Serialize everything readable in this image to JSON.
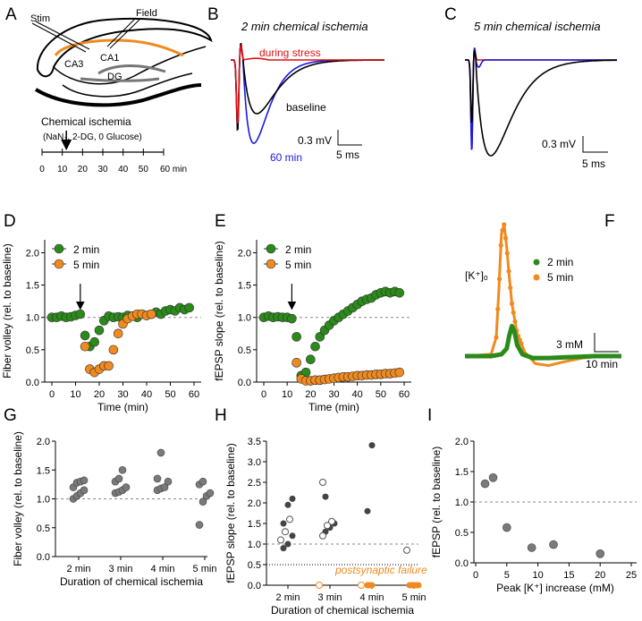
{
  "panel_letters": {
    "A": "A",
    "B": "B",
    "C": "C",
    "D": "D",
    "E": "E",
    "F": "F",
    "G": "G",
    "H": "H",
    "I": "I"
  },
  "schematic": {
    "stim_label": "Stim",
    "field_label": "Field",
    "regions": [
      "CA3",
      "CA1",
      "DG"
    ],
    "protocol_title": "Chemical ischemia",
    "protocol_detail": "(NaN₃, 2-DG, 0 Glucose)",
    "timeline_ticks": [
      "0",
      "10",
      "20",
      "30",
      "40",
      "50",
      "60 min"
    ],
    "arrow_time_min": 12
  },
  "traces": {
    "B_title": "2 min chemical ischemia",
    "C_title": "5 min chemical ischemia",
    "label_stress": "during stress",
    "label_baseline": "baseline",
    "label_60": "60 min",
    "scale_mv": "0.3 mV",
    "scale_ms": "5 ms",
    "colors": {
      "baseline": "#000000",
      "stress": "#e01010",
      "late": "#1a1ae0"
    }
  },
  "colors": {
    "green": "#2a8a1a",
    "orange": "#f08a1e",
    "grey": "#6e6e6e",
    "dark": "#444444"
  },
  "chart_data": [
    {
      "id": "D",
      "type": "scatter",
      "ylabel": "Fiber volley (rel. to baseline)",
      "xlabel": "Time (min)",
      "xlim": [
        0,
        60
      ],
      "ylim": [
        0,
        2.2
      ],
      "xticks": [
        "0",
        "10",
        "20",
        "30",
        "40",
        "50",
        "60"
      ],
      "yticks": [
        "0.0",
        "0.5",
        "1.0",
        "1.5",
        "2.0"
      ],
      "reference_line": 1.0,
      "legend": [
        "2 min",
        "5 min"
      ],
      "series": [
        {
          "name": "2 min",
          "x": [
            0,
            2,
            4,
            6,
            8,
            10,
            12,
            14,
            16,
            18,
            20,
            22,
            24,
            26,
            28,
            30,
            32,
            34,
            36,
            38,
            40,
            42,
            44,
            46,
            48,
            50,
            52,
            54,
            56,
            58
          ],
          "y": [
            1.0,
            1.0,
            1.02,
            1.0,
            1.01,
            1.03,
            1.05,
            0.72,
            0.55,
            0.62,
            0.8,
            0.95,
            1.02,
            1.0,
            1.01,
            1.0,
            1.03,
            1.02,
            1.0,
            1.05,
            1.03,
            1.05,
            1.08,
            1.05,
            1.1,
            1.12,
            1.1,
            1.15,
            1.12,
            1.15
          ]
        },
        {
          "name": "5 min",
          "x": [
            14,
            16,
            18,
            20,
            22,
            24,
            26,
            28,
            30,
            32,
            34,
            36,
            38,
            40,
            42
          ],
          "y": [
            0.55,
            0.2,
            0.15,
            0.2,
            0.25,
            0.25,
            0.5,
            0.75,
            0.9,
            0.98,
            1.02,
            1.05,
            1.05,
            1.03,
            1.05
          ]
        }
      ]
    },
    {
      "id": "E",
      "type": "scatter",
      "ylabel": "fEPSP slope (rel. to baseline)",
      "xlabel": "Time (min)",
      "xlim": [
        0,
        60
      ],
      "ylim": [
        0,
        2.2
      ],
      "xticks": [
        "0",
        "10",
        "20",
        "30",
        "40",
        "50",
        "60"
      ],
      "yticks": [
        "0.0",
        "0.5",
        "1.0",
        "1.5",
        "2.0"
      ],
      "reference_line": 1.0,
      "legend": [
        "2 min",
        "5 min"
      ],
      "series": [
        {
          "name": "2 min",
          "x": [
            0,
            2,
            4,
            6,
            8,
            10,
            12,
            14,
            16,
            18,
            20,
            22,
            24,
            26,
            28,
            30,
            32,
            34,
            36,
            38,
            40,
            42,
            44,
            46,
            48,
            50,
            52,
            54,
            56,
            58
          ],
          "y": [
            1.0,
            1.02,
            1.0,
            1.01,
            1.0,
            1.0,
            0.98,
            0.7,
            0.1,
            0.15,
            0.35,
            0.55,
            0.7,
            0.8,
            0.88,
            0.95,
            1.0,
            1.05,
            1.1,
            1.15,
            1.2,
            1.25,
            1.28,
            1.3,
            1.35,
            1.38,
            1.4,
            1.38,
            1.4,
            1.38
          ]
        },
        {
          "name": "5 min",
          "x": [
            14,
            16,
            18,
            20,
            22,
            24,
            26,
            28,
            30,
            32,
            34,
            36,
            38,
            40,
            42,
            44,
            46,
            48,
            50,
            52,
            54,
            56,
            58
          ],
          "y": [
            0.3,
            0.05,
            0.02,
            0.02,
            0.03,
            0.03,
            0.04,
            0.05,
            0.06,
            0.07,
            0.08,
            0.08,
            0.09,
            0.1,
            0.1,
            0.11,
            0.11,
            0.12,
            0.12,
            0.13,
            0.13,
            0.14,
            0.15
          ]
        }
      ]
    },
    {
      "id": "F",
      "type": "line",
      "title": "[K⁺]ₒ",
      "legend": [
        "2 min",
        "5 min"
      ],
      "scale_y": "3 mM",
      "scale_x": "10 min",
      "series": [
        {
          "name": "2 min",
          "x": [
            0,
            10,
            14,
            16,
            17,
            18,
            19,
            20,
            22,
            26,
            32,
            40,
            50,
            60
          ],
          "y": [
            0,
            0,
            0.1,
            0.4,
            1.1,
            1.6,
            1.3,
            0.6,
            0.1,
            -0.1,
            -0.1,
            -0.05,
            0,
            0
          ]
        },
        {
          "name": "5 min",
          "x": [
            0,
            10,
            12,
            13,
            14,
            15,
            16,
            17,
            18,
            20,
            23,
            27,
            32,
            38,
            45,
            52,
            60
          ],
          "y": [
            0,
            0.1,
            1.0,
            3.5,
            6.5,
            7.0,
            5.8,
            4.2,
            2.8,
            1.2,
            0.2,
            -0.4,
            -0.5,
            -0.3,
            -0.1,
            0,
            0
          ]
        }
      ]
    },
    {
      "id": "G",
      "type": "scatter",
      "ylabel": "Fiber volley (rel. to baseline)",
      "xlabel": "Duration of chemical ischemia",
      "categories": [
        "2 min",
        "3 min",
        "4 min",
        "5 min"
      ],
      "ylim": [
        0,
        2.0
      ],
      "yticks": [
        "0.0",
        "0.5",
        "1.0",
        "1.5",
        "2.0"
      ],
      "reference_line": 1.0,
      "points": [
        {
          "c": 0,
          "v": [
            1.0,
            1.05,
            1.1,
            1.15,
            1.2,
            1.28,
            1.3,
            1.32
          ]
        },
        {
          "c": 1,
          "v": [
            1.1,
            1.12,
            1.15,
            1.2,
            1.3,
            1.35,
            1.5
          ]
        },
        {
          "c": 2,
          "v": [
            1.15,
            1.18,
            1.2,
            1.3,
            1.35,
            1.8
          ]
        },
        {
          "c": 3,
          "v": [
            0.55,
            0.95,
            1.05,
            1.1,
            1.25,
            1.3
          ]
        }
      ]
    },
    {
      "id": "H",
      "type": "scatter",
      "ylabel": "fEPSP slope (rel. to baseline)",
      "xlabel": "Duration of chemical ischemia",
      "categories": [
        "2 min",
        "3 min",
        "4 min",
        "5 min"
      ],
      "ylim": [
        0,
        3.5
      ],
      "yticks": [
        "0.0",
        "0.5",
        "1.0",
        "1.5",
        "2.0",
        "2.5",
        "3.0",
        "3.5"
      ],
      "reference_line": 1.0,
      "failure_line": 0.5,
      "annotation": "postsynaptic failure",
      "points": [
        {
          "c": 0,
          "filled": [
            0.9,
            1.0,
            1.2,
            1.5,
            1.95,
            2.1
          ],
          "open": [
            1.1,
            1.3,
            1.6
          ]
        },
        {
          "c": 1,
          "filled": [
            1.3,
            1.4,
            1.5,
            2.15
          ],
          "open": [
            1.2,
            1.45,
            1.55,
            2.5
          ]
        },
        {
          "c": 2,
          "filled": [
            1.8,
            3.4
          ],
          "open": []
        },
        {
          "c": 3,
          "filled": [],
          "open": [
            0.85
          ]
        }
      ],
      "failures": [
        {
          "c": 1,
          "filled": [],
          "open": [
            0.0
          ]
        },
        {
          "c": 2,
          "filled": [
            0.0,
            0.0,
            0.0
          ],
          "open": [
            0.0
          ]
        },
        {
          "c": 3,
          "filled": [
            0.0,
            0.0,
            0.0,
            0.0,
            0.0
          ],
          "open": []
        }
      ]
    },
    {
      "id": "I",
      "type": "scatter",
      "ylabel": "fEPSP (rel. to baseline)",
      "xlabel": "Peak [K⁺] increase (mM)",
      "xlim": [
        0,
        25
      ],
      "ylim": [
        0,
        2.0
      ],
      "xticks": [
        "0",
        "5",
        "10",
        "15",
        "20",
        "25"
      ],
      "yticks": [
        "0.0",
        "0.5",
        "1.0",
        "1.5",
        "2.0"
      ],
      "reference_line": 1.0,
      "x": [
        1.5,
        2.8,
        5.0,
        9.0,
        12.5,
        20.0
      ],
      "y": [
        1.3,
        1.4,
        0.58,
        0.25,
        0.3,
        0.15
      ]
    }
  ]
}
